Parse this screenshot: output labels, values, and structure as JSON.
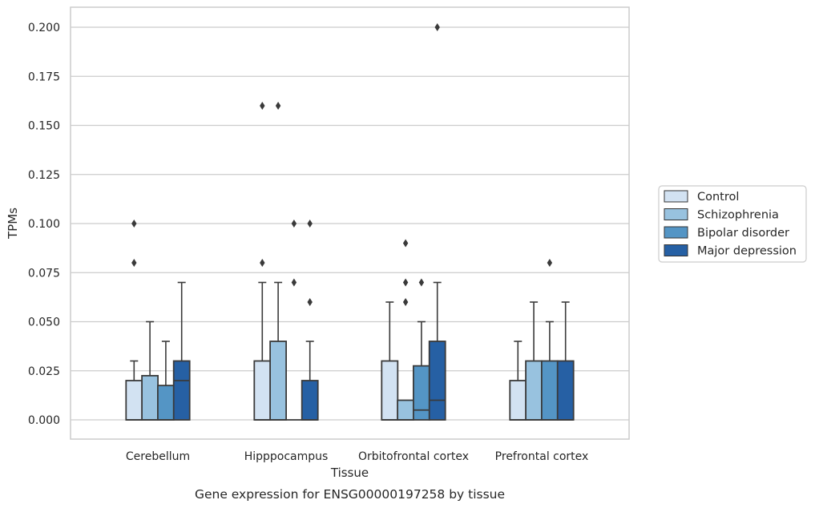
{
  "chart_data": {
    "type": "boxplot",
    "caption": "Gene expression for ENSG00000197258 by tissue",
    "xlabel": "Tissue",
    "ylabel": "TPMs",
    "ylim": [
      -0.01,
      0.21
    ],
    "yticks": [
      0.0,
      0.025,
      0.05,
      0.075,
      0.1,
      0.125,
      0.15,
      0.175,
      0.2
    ],
    "ytick_labels": [
      "0.000",
      "0.025",
      "0.050",
      "0.075",
      "0.100",
      "0.125",
      "0.150",
      "0.175",
      "0.200"
    ],
    "grid": "horizontal",
    "legend_position": "right",
    "categories": [
      "Cerebellum",
      "Hipppocampus",
      "Orbitofrontal cortex",
      "Prefrontal cortex"
    ],
    "series": [
      {
        "name": "Control",
        "color": "#d2e2f2",
        "boxes": [
          {
            "whislo": 0.0,
            "q1": 0.0,
            "med": 0.0,
            "q3": 0.02,
            "whishi": 0.03,
            "fliers": [
              0.08,
              0.1
            ]
          },
          {
            "whislo": 0.0,
            "q1": 0.0,
            "med": 0.0,
            "q3": 0.03,
            "whishi": 0.07,
            "fliers": [
              0.08,
              0.16
            ]
          },
          {
            "whislo": 0.0,
            "q1": 0.0,
            "med": 0.0,
            "q3": 0.03,
            "whishi": 0.06,
            "fliers": []
          },
          {
            "whislo": 0.0,
            "q1": 0.0,
            "med": 0.0,
            "q3": 0.02,
            "whishi": 0.04,
            "fliers": []
          }
        ]
      },
      {
        "name": "Schizophrenia",
        "color": "#98c2df",
        "boxes": [
          {
            "whislo": 0.0,
            "q1": 0.0,
            "med": 0.0,
            "q3": 0.0225,
            "whishi": 0.05,
            "fliers": []
          },
          {
            "whislo": 0.0,
            "q1": 0.0,
            "med": 0.0,
            "q3": 0.04,
            "whishi": 0.07,
            "fliers": [
              0.16
            ]
          },
          {
            "whislo": 0.0,
            "q1": 0.0,
            "med": 0.0,
            "q3": 0.01,
            "whishi": 0.01,
            "fliers": [
              0.06,
              0.07,
              0.09
            ]
          },
          {
            "whislo": 0.0,
            "q1": 0.0,
            "med": 0.0,
            "q3": 0.03,
            "whishi": 0.06,
            "fliers": []
          }
        ]
      },
      {
        "name": "Bipolar disorder",
        "color": "#5495c5",
        "boxes": [
          {
            "whislo": 0.0,
            "q1": 0.0,
            "med": 0.0,
            "q3": 0.0175,
            "whishi": 0.04,
            "fliers": []
          },
          {
            "whislo": 0.0,
            "q1": 0.0,
            "med": 0.0,
            "q3": 0.0,
            "whishi": 0.0,
            "fliers": [
              0.07,
              0.1
            ]
          },
          {
            "whislo": 0.0,
            "q1": 0.0,
            "med": 0.005,
            "q3": 0.0275,
            "whishi": 0.05,
            "fliers": [
              0.07
            ]
          },
          {
            "whislo": 0.0,
            "q1": 0.0,
            "med": 0.0,
            "q3": 0.03,
            "whishi": 0.05,
            "fliers": [
              0.08
            ]
          }
        ]
      },
      {
        "name": "Major depression",
        "color": "#2660a4",
        "boxes": [
          {
            "whislo": 0.0,
            "q1": 0.0,
            "med": 0.02,
            "q3": 0.03,
            "whishi": 0.07,
            "fliers": []
          },
          {
            "whislo": 0.0,
            "q1": 0.0,
            "med": 0.0,
            "q3": 0.02,
            "whishi": 0.04,
            "fliers": [
              0.06,
              0.1
            ]
          },
          {
            "whislo": 0.0,
            "q1": 0.0,
            "med": 0.01,
            "q3": 0.04,
            "whishi": 0.07,
            "fliers": [
              0.2
            ]
          },
          {
            "whislo": 0.0,
            "q1": 0.0,
            "med": 0.0,
            "q3": 0.03,
            "whishi": 0.06,
            "fliers": []
          }
        ]
      }
    ]
  }
}
